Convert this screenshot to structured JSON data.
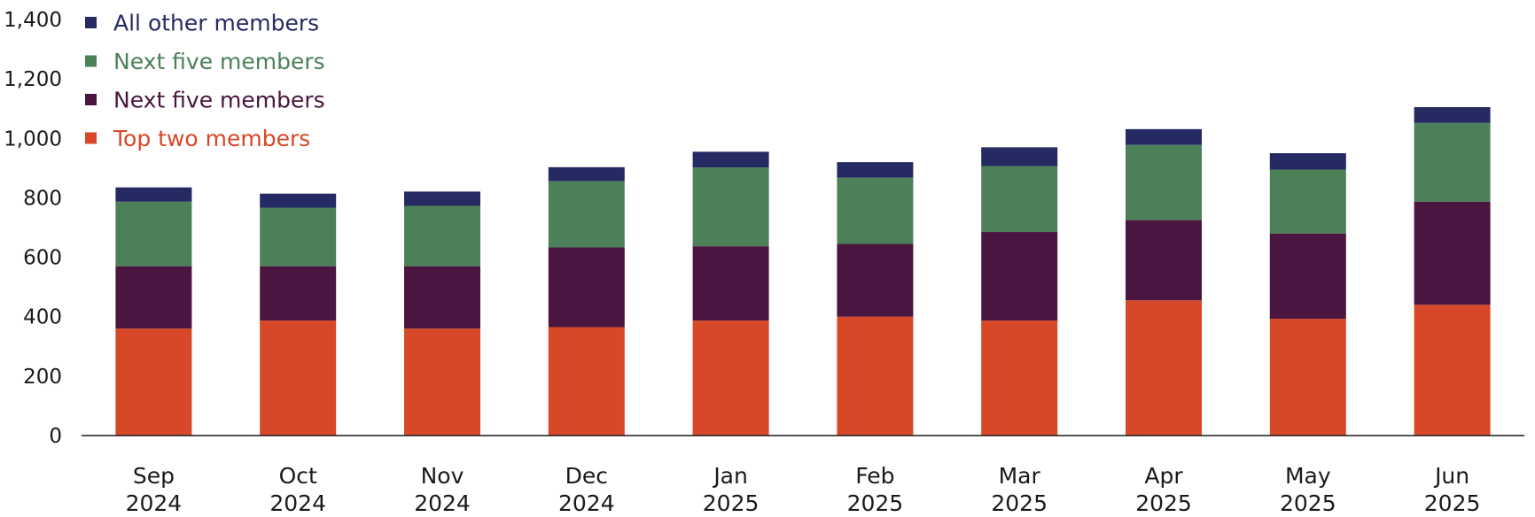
{
  "chart_data": {
    "type": "bar",
    "stacked": true,
    "categories": [
      [
        "Sep",
        "2024"
      ],
      [
        "Oct",
        "2024"
      ],
      [
        "Nov",
        "2024"
      ],
      [
        "Dec",
        "2024"
      ],
      [
        "Jan",
        "2025"
      ],
      [
        "Feb",
        "2025"
      ],
      [
        "Mar",
        "2025"
      ],
      [
        "Apr",
        "2025"
      ],
      [
        "May",
        "2025"
      ],
      [
        "Jun",
        "2025"
      ]
    ],
    "series": [
      {
        "name": "Top two members",
        "color": "#D64828",
        "values": [
          360,
          387,
          360,
          365,
          387,
          400,
          387,
          455,
          393,
          440
        ]
      },
      {
        "name": "Next five members",
        "color": "#4A1640",
        "values": [
          210,
          183,
          210,
          268,
          250,
          245,
          298,
          270,
          287,
          347
        ]
      },
      {
        "name": "Next five members",
        "color": "#4B8058",
        "values": [
          217,
          197,
          203,
          223,
          265,
          223,
          222,
          253,
          215,
          265
        ]
      },
      {
        "name": "All other members",
        "color": "#252A63",
        "values": [
          48,
          47,
          48,
          47,
          53,
          52,
          63,
          53,
          55,
          53
        ]
      }
    ],
    "legend_order": [
      3,
      2,
      1,
      0
    ],
    "ylim": [
      0,
      1400
    ],
    "yticks": [
      0,
      200,
      400,
      600,
      800,
      1000,
      1200,
      1400
    ],
    "ytick_labels": [
      "0",
      "200",
      "400",
      "600",
      "800",
      "1,000",
      "1,200",
      "1,400"
    ],
    "legend_position": "top-left",
    "grid": false
  }
}
